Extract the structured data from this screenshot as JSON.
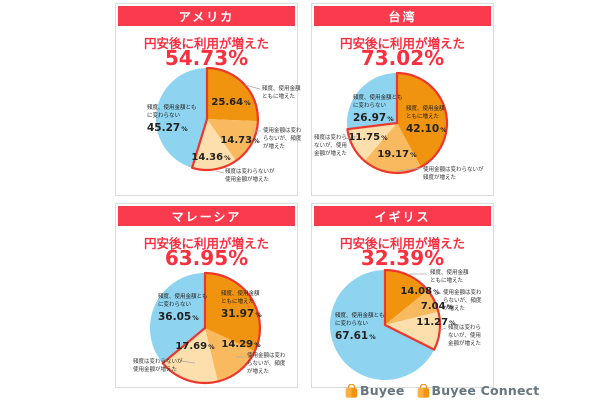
{
  "ui": {
    "pct_sign": "%",
    "footer": {
      "brand1": "Buyee",
      "brand2": "Buyee Connect"
    }
  },
  "colors": {
    "banner_red": "#f93b4d",
    "title_red": "#f8303f",
    "outline_red": "#ee372c",
    "label_dark": "#222222",
    "desc_gray": "#333333",
    "leader_gray": "#aaaaaa",
    "card_border": "#dcdcdc",
    "logo_gray": "#66757f",
    "logo_orange": "#f5920f",
    "logo_orange_light": "#fbb03f",
    "slice_colors": [
      "#f0930e",
      "#f8b95f",
      "#fcdfad",
      "#8ed3ef"
    ]
  },
  "chart_data": [
    {
      "type": "pie",
      "country": "アメリカ",
      "title": "円安後に利用が増えた",
      "increase_pct": "54.73%",
      "categories": [
        "頻度、使用金額ともに増えた",
        "使用金額は変わらないが、頻度が増えた",
        "頻度は変わらないが使用金額が増えた",
        "頻度、使用金額ともに変わらない"
      ],
      "values": [
        25.64,
        14.73,
        14.36,
        45.27
      ],
      "pct_labels": [
        "25.64",
        "14.73",
        "14.36",
        "45.27"
      ],
      "highlight": "first three slices (increased usage) outlined in red, total 54.73%"
    },
    {
      "type": "pie",
      "country": "台湾",
      "title": "円安後に利用が増えた",
      "increase_pct": "73.02%",
      "categories": [
        "頻度、使用金額ともに増えた",
        "使用金額は変わらないが頻度が増えた",
        "頻度は変わらないが、使用金額が増えた",
        "頻度、使用金額ともに変わらない"
      ],
      "values": [
        42.1,
        19.17,
        11.75,
        26.97
      ],
      "pct_labels": [
        "42.10",
        "19.17",
        "11.75",
        "26.97"
      ],
      "highlight": "first three slices (increased usage) outlined in red, total 73.02%"
    },
    {
      "type": "pie",
      "country": "マレーシア",
      "title": "円安後に利用が増えた",
      "increase_pct": "63.95%",
      "categories": [
        "頻度、使用金額ともに増えた",
        "使用金額は変わらないが、頻度が増えた",
        "頻度は変わらないが使用金額が増えた",
        "頻度、使用金額ともに変わらない"
      ],
      "values": [
        31.97,
        14.29,
        17.69,
        36.05
      ],
      "pct_labels": [
        "31.97",
        "14.29",
        "17.69",
        "36.05"
      ],
      "highlight": "first three slices (increased usage) outlined in red, total 63.95%"
    },
    {
      "type": "pie",
      "country": "イギリス",
      "title": "円安後に利用が増えた",
      "increase_pct": "32.39%",
      "categories": [
        "頻度、使用金額ともに増えた",
        "使用金額は変わらないが、頻度が増えた",
        "頻度は変わらないが、使用金額が増えた",
        "頻度、使用金額ともに変わらない"
      ],
      "values": [
        14.08,
        7.04,
        11.27,
        67.61
      ],
      "pct_labels": [
        "14.08",
        "7.04",
        "11.27",
        "67.61"
      ],
      "highlight": "first three slices (increased usage) outlined in red, total 32.39%"
    }
  ]
}
